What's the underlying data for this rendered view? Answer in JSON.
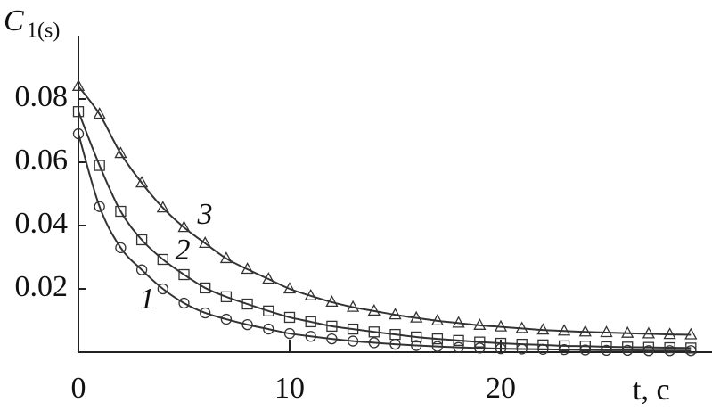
{
  "chart_data": {
    "type": "scatter",
    "ylabel_symbol": "C",
    "ylabel_subscript": "1(s)",
    "xlabel": "t, c",
    "xlim": [
      0,
      30
    ],
    "ylim": [
      0,
      0.1
    ],
    "xticks": [
      0,
      10,
      20
    ],
    "yticks": [
      0.02,
      0.04,
      0.06,
      0.08
    ],
    "x": [
      0,
      1,
      2,
      3,
      4,
      5,
      6,
      7,
      8,
      9,
      10,
      11,
      12,
      13,
      14,
      15,
      16,
      17,
      18,
      19,
      20,
      21,
      22,
      23,
      24,
      25,
      26,
      27,
      28,
      29
    ],
    "series": [
      {
        "name": "1",
        "marker": "circle",
        "color": "#333",
        "values": [
          0.069,
          0.046,
          0.033,
          0.026,
          0.02,
          0.0155,
          0.0124,
          0.0104,
          0.0087,
          0.0073,
          0.0059,
          0.005,
          0.0042,
          0.0035,
          0.003,
          0.0025,
          0.0021,
          0.0018,
          0.0015,
          0.0013,
          0.0011,
          0.001,
          0.0009,
          0.0008,
          0.0007,
          0.0006,
          0.0006,
          0.0005,
          0.0005,
          0.0005
        ]
      },
      {
        "name": "2",
        "marker": "square",
        "color": "#333",
        "values": [
          0.076,
          0.059,
          0.0445,
          0.0355,
          0.0293,
          0.0245,
          0.0203,
          0.0175,
          0.0152,
          0.013,
          0.011,
          0.0096,
          0.0082,
          0.0073,
          0.0064,
          0.0056,
          0.0048,
          0.0042,
          0.0037,
          0.0032,
          0.0028,
          0.0025,
          0.0023,
          0.002,
          0.0019,
          0.0017,
          0.0016,
          0.0015,
          0.0014,
          0.0013
        ]
      },
      {
        "name": "3",
        "marker": "triangle",
        "color": "#333",
        "values": [
          0.084,
          0.0752,
          0.0628,
          0.0535,
          0.0456,
          0.0394,
          0.0344,
          0.0296,
          0.0262,
          0.0231,
          0.02,
          0.0178,
          0.0158,
          0.0142,
          0.013,
          0.0118,
          0.0108,
          0.0099,
          0.0092,
          0.0085,
          0.008,
          0.0075,
          0.007,
          0.0067,
          0.0064,
          0.0062,
          0.006,
          0.0058,
          0.0056,
          0.0055
        ]
      }
    ]
  }
}
